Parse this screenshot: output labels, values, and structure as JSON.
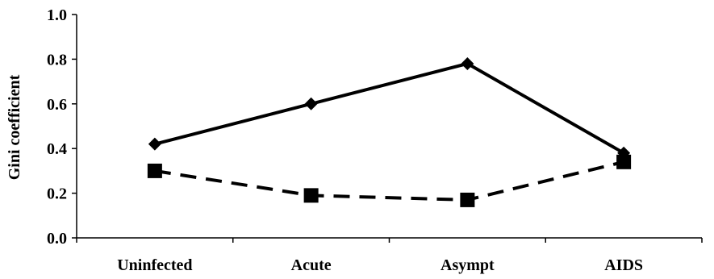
{
  "chart_data": {
    "type": "line",
    "title": "",
    "xlabel": "",
    "ylabel": "Gini coefficient",
    "categories": [
      "Uninfected",
      "Acute",
      "Asympt",
      "AIDS"
    ],
    "ylim": [
      0.0,
      1.0
    ],
    "yticks": [
      "0.0",
      "0.2",
      "0.4",
      "0.6",
      "0.8",
      "1.0"
    ],
    "grid": false,
    "legend": "none",
    "series": [
      {
        "values": [
          0.42,
          0.6,
          0.78,
          0.38
        ],
        "marker": "diamond",
        "line_style": "solid",
        "color": "#000000"
      },
      {
        "values": [
          0.3,
          0.19,
          0.17,
          0.34
        ],
        "marker": "square",
        "line_style": "dashed",
        "color": "#000000"
      }
    ]
  }
}
